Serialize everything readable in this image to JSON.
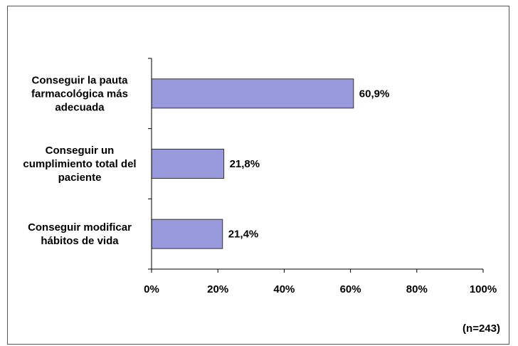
{
  "chart_data": {
    "type": "bar",
    "orientation": "horizontal",
    "categories": [
      [
        "Conseguir la pauta",
        "farmacológica más",
        "adecuada"
      ],
      [
        "Conseguir un",
        "cumplimiento total del",
        "paciente"
      ],
      [
        "Conseguir modificar",
        "hábitos de vida"
      ]
    ],
    "values": [
      60.9,
      21.8,
      21.4
    ],
    "value_labels": [
      "60,9%",
      "21,8%",
      "21,4%"
    ],
    "xlim": [
      0,
      100
    ],
    "x_ticks": [
      0,
      20,
      40,
      60,
      80,
      100
    ],
    "x_tick_labels": [
      "0%",
      "20%",
      "40%",
      "60%",
      "80%",
      "100%"
    ],
    "grid": false,
    "bar_color": "#9999dd",
    "bar_edge_color": "#333333",
    "note": "(n=243)"
  }
}
